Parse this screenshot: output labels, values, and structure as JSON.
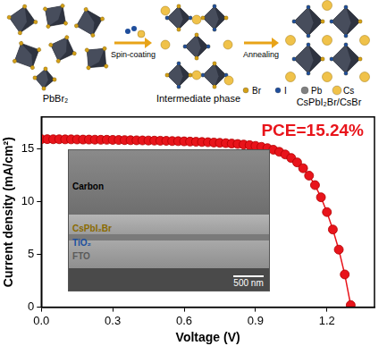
{
  "chart_data": {
    "type": "line",
    "xlabel": "Voltage (V)",
    "ylabel": "Current density (mA/cm²)",
    "annotations": [
      "PCE=15.24%"
    ],
    "x": [
      0,
      0.025,
      0.05,
      0.075,
      0.1,
      0.125,
      0.15,
      0.175,
      0.2,
      0.225,
      0.25,
      0.275,
      0.3,
      0.325,
      0.35,
      0.375,
      0.4,
      0.425,
      0.45,
      0.475,
      0.5,
      0.525,
      0.55,
      0.575,
      0.6,
      0.625,
      0.65,
      0.675,
      0.7,
      0.725,
      0.75,
      0.775,
      0.8,
      0.825,
      0.85,
      0.875,
      0.9,
      0.925,
      0.95,
      0.975,
      1.0,
      1.025,
      1.05,
      1.075,
      1.1,
      1.125,
      1.15,
      1.175,
      1.2,
      1.225,
      1.25,
      1.275,
      1.3
    ],
    "values": [
      15.9,
      15.9,
      15.89,
      15.89,
      15.88,
      15.88,
      15.87,
      15.86,
      15.86,
      15.85,
      15.84,
      15.84,
      15.83,
      15.82,
      15.81,
      15.8,
      15.79,
      15.78,
      15.77,
      15.76,
      15.75,
      15.74,
      15.72,
      15.71,
      15.69,
      15.67,
      15.65,
      15.63,
      15.61,
      15.58,
      15.55,
      15.52,
      15.48,
      15.44,
      15.39,
      15.33,
      15.26,
      15.17,
      15.05,
      14.9,
      14.7,
      14.45,
      14.12,
      13.7,
      13.15,
      12.45,
      11.55,
      10.4,
      9.0,
      7.35,
      5.45,
      3.1,
      0.2
    ],
    "color": "#e8141b",
    "marker": "circle",
    "line_style": "solid",
    "xlim": [
      0,
      1.4
    ],
    "xticks": [
      {
        "value": 0,
        "label": "0.0"
      },
      0.3,
      0.6,
      0.9,
      1.2
    ],
    "ylim": [
      0,
      18
    ],
    "yticks": [
      0,
      5,
      10,
      15
    ],
    "grid": false,
    "inset": {
      "labels": [
        "Carbon",
        "CsPbI₂Br",
        "TiO₂",
        "FTO"
      ],
      "scale_bar": "500 nm"
    }
  },
  "schematic": {
    "stages": [
      "PbBr₂",
      "Intermediate phase",
      "CsPbI₂Br/CsBr"
    ],
    "steps": [
      "Spin-coating",
      "Annealing"
    ],
    "legend": [
      {
        "name": "Br",
        "color": "#d4a017"
      },
      {
        "name": "I",
        "color": "#1f4e9c"
      },
      {
        "name": "Pb",
        "color": "#808080"
      },
      {
        "name": "Cs",
        "color": "#f0c24a"
      }
    ]
  }
}
